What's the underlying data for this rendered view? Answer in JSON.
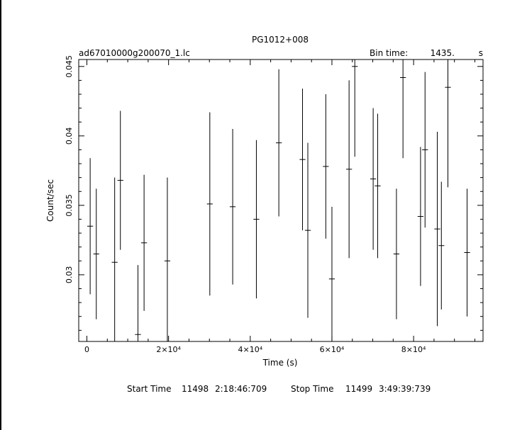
{
  "chart_data": {
    "type": "scatter",
    "title": "PG1012+008",
    "file_label": "ad67010000g200070_1.lc",
    "bin_label": "Bin time:",
    "bin_value": "1435.",
    "bin_unit": "s",
    "xlabel": "Time (s)",
    "ylabel": "Count/sec",
    "xlim": [
      -2000,
      97000
    ],
    "ylim": [
      0.0252,
      0.0455
    ],
    "x_ticks": [
      {
        "value": 0,
        "label": "0"
      },
      {
        "value": 20000,
        "label": "2×10⁴"
      },
      {
        "value": 40000,
        "label": "4×10⁴"
      },
      {
        "value": 60000,
        "label": "6×10⁴"
      },
      {
        "value": 80000,
        "label": "8×10⁴"
      }
    ],
    "y_ticks": [
      {
        "value": 0.03,
        "label": "0.03"
      },
      {
        "value": 0.035,
        "label": "0.035"
      },
      {
        "value": 0.04,
        "label": "0.04"
      },
      {
        "value": 0.045,
        "label": "0.045"
      }
    ],
    "grid": false,
    "bin_halfwidth": 717.5,
    "points": [
      {
        "x": 800,
        "y": 0.0335,
        "err": 0.0049
      },
      {
        "x": 2300,
        "y": 0.0315,
        "err": 0.0047
      },
      {
        "x": 6800,
        "y": 0.0309,
        "err": 0.0061
      },
      {
        "x": 8200,
        "y": 0.0368,
        "err": 0.005
      },
      {
        "x": 12500,
        "y": 0.0257,
        "err": 0.005
      },
      {
        "x": 14000,
        "y": 0.0323,
        "err": 0.0049
      },
      {
        "x": 19700,
        "y": 0.031,
        "err": 0.006
      },
      {
        "x": 30100,
        "y": 0.0351,
        "err": 0.0066
      },
      {
        "x": 35700,
        "y": 0.0349,
        "err": 0.0056
      },
      {
        "x": 41500,
        "y": 0.034,
        "err": 0.0057
      },
      {
        "x": 47000,
        "y": 0.0395,
        "err": 0.0053
      },
      {
        "x": 52800,
        "y": 0.0383,
        "err": 0.0051
      },
      {
        "x": 54100,
        "y": 0.0332,
        "err": 0.0063
      },
      {
        "x": 58500,
        "y": 0.0378,
        "err": 0.0052
      },
      {
        "x": 60000,
        "y": 0.0297,
        "err": 0.0052
      },
      {
        "x": 64200,
        "y": 0.0376,
        "err": 0.0064
      },
      {
        "x": 65600,
        "y": 0.045,
        "err": 0.0065
      },
      {
        "x": 70100,
        "y": 0.0369,
        "err": 0.0051
      },
      {
        "x": 71200,
        "y": 0.0364,
        "err": 0.0052
      },
      {
        "x": 75800,
        "y": 0.0315,
        "err": 0.0047
      },
      {
        "x": 77400,
        "y": 0.0442,
        "err": 0.0058
      },
      {
        "x": 81700,
        "y": 0.0342,
        "err": 0.005
      },
      {
        "x": 82800,
        "y": 0.039,
        "err": 0.0056
      },
      {
        "x": 85800,
        "y": 0.0333,
        "err": 0.007
      },
      {
        "x": 86800,
        "y": 0.0321,
        "err": 0.0046
      },
      {
        "x": 88400,
        "y": 0.0435,
        "err": 0.0072
      },
      {
        "x": 93100,
        "y": 0.0316,
        "err": 0.0046
      }
    ]
  },
  "footer": {
    "start_label": "Start Time",
    "start_day": "11498",
    "start_time": "2:18:46:709",
    "stop_label": "Stop Time",
    "stop_day": "11499",
    "stop_time": "3:49:39:739"
  }
}
